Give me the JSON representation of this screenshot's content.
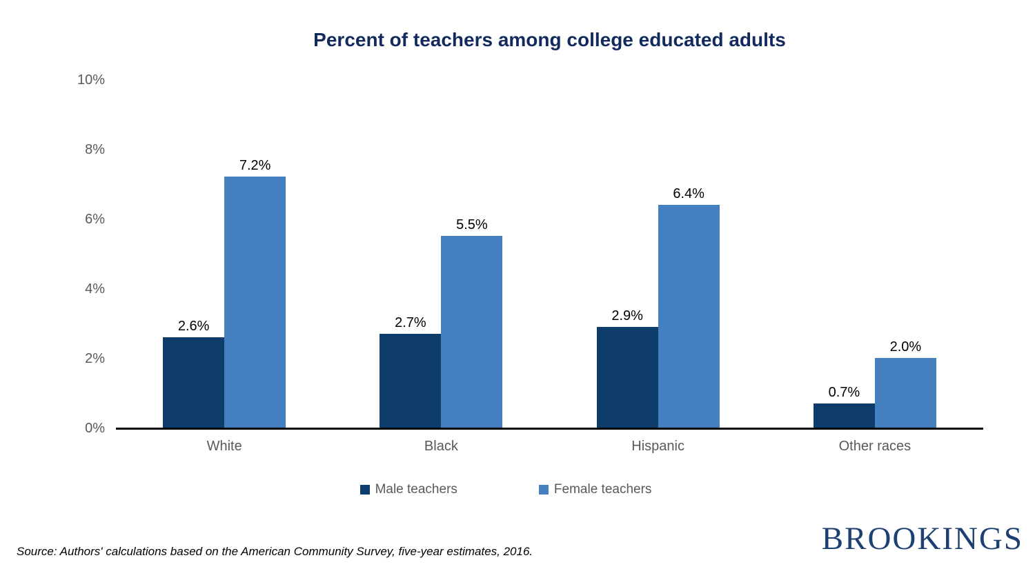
{
  "chart_data": {
    "type": "bar",
    "title": "Percent of teachers among college educated adults",
    "categories": [
      "White",
      "Black",
      "Hispanic",
      "Other races"
    ],
    "series": [
      {
        "name": "Male teachers",
        "color": "#0F3D6B",
        "values": [
          2.6,
          2.7,
          2.9,
          0.7
        ],
        "labels": [
          "2.6%",
          "2.7%",
          "2.9%",
          "0.7%"
        ]
      },
      {
        "name": "Female teachers",
        "color": "#4480BF",
        "values": [
          7.2,
          5.5,
          6.4,
          2.0
        ],
        "labels": [
          "7.2%",
          "5.5%",
          "6.4%",
          "2.0%"
        ]
      }
    ],
    "xlabel": "",
    "ylabel": "",
    "y_axis": {
      "ticks": [
        "0%",
        "2%",
        "4%",
        "6%",
        "8%",
        "10%"
      ],
      "tick_values": [
        0,
        2,
        4,
        6,
        8,
        10
      ],
      "max": 10
    },
    "ylim": [
      0,
      10
    ],
    "grid": false,
    "legend_position": "bottom"
  },
  "footer": {
    "source": "Source: Authors' calculations based on the American Community Survey, five-year estimates, 2016.",
    "logo_text": "BROOKINGS"
  },
  "colors": {
    "title": "#132A5E",
    "axis_text": "#595959",
    "value_label": "#000000",
    "axis_line": "#000000",
    "logo": "#1D3F72",
    "background": "#FFFFFF"
  }
}
